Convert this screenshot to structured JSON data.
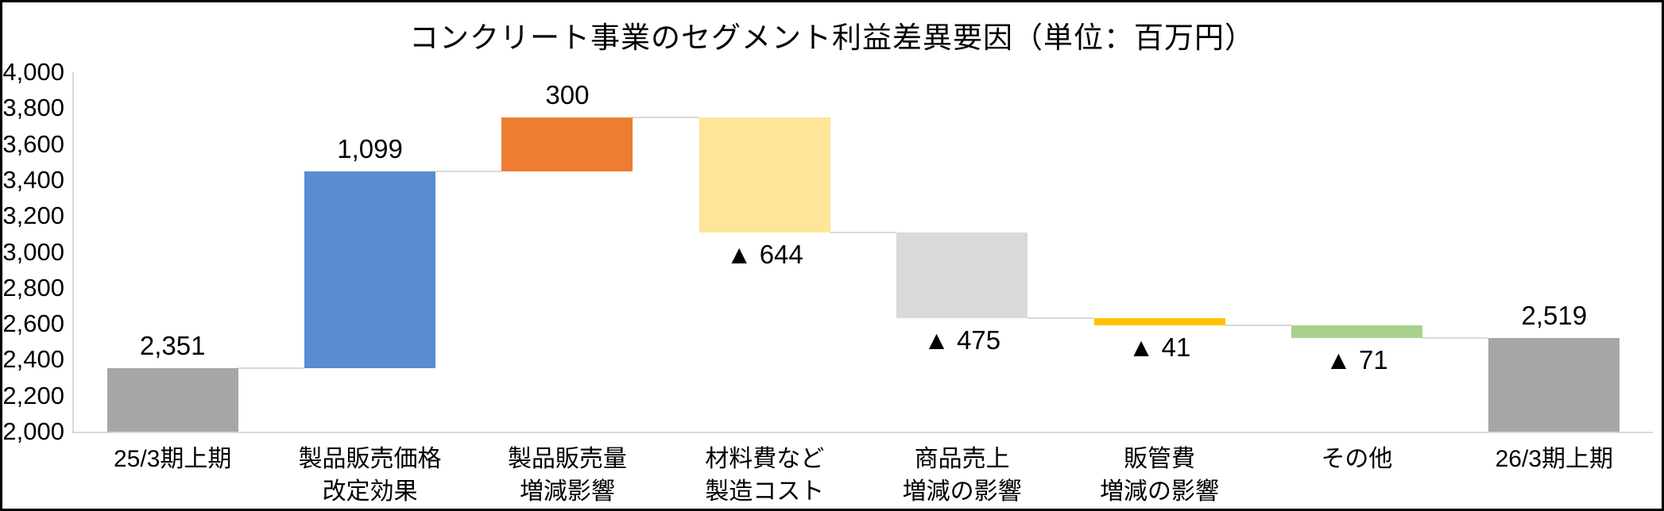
{
  "chart_data": {
    "type": "bar",
    "subtype": "waterfall",
    "title": "コンクリート事業のセグメント利益差異要因（単位：百万円）",
    "unit": "百万円",
    "ylim": [
      2000,
      4000
    ],
    "ytick_step": 200,
    "ytick_values": [
      4000,
      3800,
      3600,
      3400,
      3200,
      3000,
      2800,
      2600,
      2400,
      2200,
      2000
    ],
    "ytick_labels": [
      "4,000",
      "3,800",
      "3,600",
      "3,400",
      "3,200",
      "3,000",
      "2,800",
      "2,600",
      "2,400",
      "2,200",
      "2,000"
    ],
    "grid": false,
    "legend": false,
    "axis_color": "#d9d9d9",
    "connector_color": "#d9d9d9",
    "bars": [
      {
        "category_lines": [
          "25/3期上期"
        ],
        "role": "total",
        "start": 2000,
        "end": 2351,
        "value": 2351,
        "data_label": "2,351",
        "label_position": "above",
        "color": "#a6a6a6"
      },
      {
        "category_lines": [
          "製品販売価格",
          "改定効果"
        ],
        "role": "increase",
        "start": 2351,
        "end": 3450,
        "value": 1099,
        "data_label": "1,099",
        "label_position": "above",
        "color": "#5a8cd2"
      },
      {
        "category_lines": [
          "製品販売量",
          "増減影響"
        ],
        "role": "increase",
        "start": 3450,
        "end": 3750,
        "value": 300,
        "data_label": "300",
        "label_position": "above",
        "color": "#ed7d31"
      },
      {
        "category_lines": [
          "材料費など",
          "製造コスト"
        ],
        "role": "decrease",
        "start": 3750,
        "end": 3106,
        "value": -644,
        "data_label": "▲ 644",
        "label_position": "below",
        "color": "#ffe599"
      },
      {
        "category_lines": [
          "商品売上",
          "増減の影響"
        ],
        "role": "decrease",
        "start": 3106,
        "end": 2631,
        "value": -475,
        "data_label": "▲ 475",
        "label_position": "below",
        "color": "#d9d9d9"
      },
      {
        "category_lines": [
          "販管費",
          "増減の影響"
        ],
        "role": "decrease",
        "start": 2631,
        "end": 2590,
        "value": -41,
        "data_label": "▲ 41",
        "label_position": "below",
        "color": "#ffc000"
      },
      {
        "category_lines": [
          "その他"
        ],
        "role": "decrease",
        "start": 2590,
        "end": 2519,
        "value": -71,
        "data_label": "▲ 71",
        "label_position": "below",
        "color": "#a9d18e"
      },
      {
        "category_lines": [
          "26/3期上期"
        ],
        "role": "total",
        "start": 2000,
        "end": 2519,
        "value": 2519,
        "data_label": "2,519",
        "label_position": "above",
        "color": "#a6a6a6"
      }
    ]
  }
}
